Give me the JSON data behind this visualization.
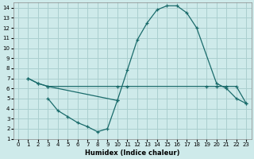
{
  "xlabel": "Humidex (Indice chaleur)",
  "bg_color": "#ceeaea",
  "grid_color": "#aacfcf",
  "line_color": "#1a6b6b",
  "xlim": [
    -0.5,
    23.5
  ],
  "ylim": [
    1,
    14.5
  ],
  "xticks": [
    0,
    1,
    2,
    3,
    4,
    5,
    6,
    7,
    8,
    9,
    10,
    11,
    12,
    13,
    14,
    15,
    16,
    17,
    18,
    19,
    20,
    21,
    22,
    23
  ],
  "yticks": [
    1,
    2,
    3,
    4,
    5,
    6,
    7,
    8,
    9,
    10,
    11,
    12,
    13,
    14
  ],
  "line1_x": [
    1,
    2,
    3,
    10,
    11,
    19,
    20,
    21,
    22,
    23
  ],
  "line1_y": [
    7,
    6.5,
    6.2,
    6.2,
    6.2,
    6.2,
    6.2,
    6.2,
    6.2,
    4.5
  ],
  "line2_x": [
    1,
    2,
    3,
    10,
    11,
    12,
    13,
    14,
    15,
    16,
    17,
    18,
    20,
    21,
    22,
    23
  ],
  "line2_y": [
    7,
    6.5,
    6.2,
    4.8,
    7.8,
    10.8,
    12.5,
    13.8,
    14.2,
    14.2,
    13.5,
    12.0,
    6.5,
    6.0,
    5.0,
    4.5
  ],
  "line3_x": [
    3,
    4,
    5,
    6,
    7,
    8,
    9,
    10
  ],
  "line3_y": [
    5.0,
    3.8,
    3.2,
    2.6,
    2.2,
    1.7,
    2.0,
    4.8
  ]
}
